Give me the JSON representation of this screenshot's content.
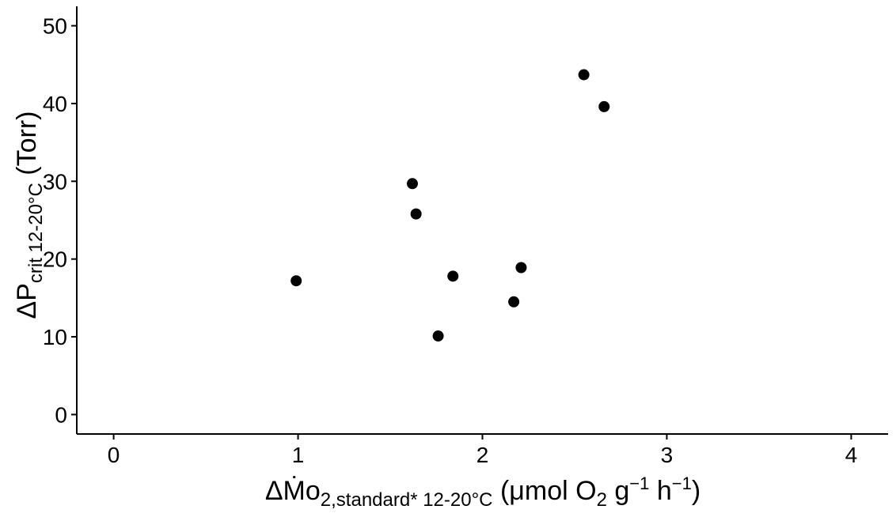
{
  "chart_data": {
    "type": "scatter",
    "title": "",
    "xlabel": {
      "delta": "Δ",
      "main": "Ṁo",
      "sub": "2,standard* 12-20°C",
      "unit_open": " (μmol O",
      "unit_sub": "2",
      "unit_mid": " g",
      "unit_sup1": "−1",
      "unit_h": " h",
      "unit_sup2": "−1",
      "unit_close": ")"
    },
    "ylabel": {
      "delta": "Δ",
      "main": "P",
      "sub": "crit 12-20°C",
      "unit": " (Torr)"
    },
    "xlim": [
      -0.2,
      4.2
    ],
    "ylim": [
      -2.5,
      52.5
    ],
    "xticks": [
      0,
      1,
      2,
      3,
      4
    ],
    "yticks": [
      0,
      10,
      20,
      30,
      40,
      50
    ],
    "xtick_labels": [
      "0",
      "1",
      "2",
      "3",
      "4"
    ],
    "ytick_labels": [
      "0",
      "10",
      "20",
      "30",
      "40",
      "50"
    ],
    "grid": false,
    "legend": "none",
    "point_color": "#000000",
    "points": [
      {
        "x": 0.99,
        "y": 17.2
      },
      {
        "x": 1.62,
        "y": 29.7
      },
      {
        "x": 1.64,
        "y": 25.8
      },
      {
        "x": 1.76,
        "y": 10.1
      },
      {
        "x": 1.84,
        "y": 17.8
      },
      {
        "x": 2.17,
        "y": 14.5
      },
      {
        "x": 2.21,
        "y": 18.9
      },
      {
        "x": 2.55,
        "y": 43.7
      },
      {
        "x": 2.66,
        "y": 39.6
      }
    ]
  }
}
